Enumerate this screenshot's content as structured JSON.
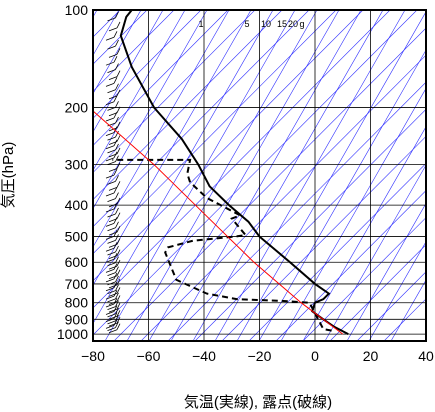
{
  "chart_data": {
    "type": "line",
    "title": "",
    "xlabel": "気温(実線), 露点(破線)",
    "ylabel": "気圧(hPa)",
    "xlim": [
      -80,
      40
    ],
    "ylim": [
      1050,
      100
    ],
    "y_scale": "log",
    "x_ticks": [
      "−80",
      "−60",
      "−40",
      "−20",
      "0",
      "20",
      "40"
    ],
    "y_ticks": [
      "100",
      "200",
      "300",
      "400",
      "500",
      "600",
      "700",
      "800",
      "900",
      "1000"
    ],
    "mixing_ratio_labels": [
      "1",
      "5",
      "10",
      "15",
      "20",
      "g"
    ],
    "grid": true,
    "series": [
      {
        "style": "solid",
        "color": "#000000",
        "points": [
          [
            12,
            1000
          ],
          [
            7,
            950
          ],
          [
            3,
            900
          ],
          [
            -1,
            850
          ],
          [
            0,
            800
          ],
          [
            3,
            780
          ],
          [
            5,
            750
          ],
          [
            0,
            700
          ],
          [
            -9,
            600
          ],
          [
            -20,
            500
          ],
          [
            -24,
            450
          ],
          [
            -31,
            400
          ],
          [
            -38,
            350
          ],
          [
            -42,
            300
          ],
          [
            -48,
            250
          ],
          [
            -58,
            200
          ],
          [
            -66,
            150
          ],
          [
            -70,
            120
          ],
          [
            -68,
            105
          ],
          [
            -66,
            100
          ]
        ]
      },
      {
        "style": "dashed",
        "color": "#000000",
        "points": [
          [
            6,
            975
          ],
          [
            3,
            965
          ],
          [
            -2,
            800
          ],
          [
            -12,
            790
          ],
          [
            -28,
            780
          ],
          [
            -39,
            750
          ],
          [
            -50,
            680
          ],
          [
            -54,
            560
          ],
          [
            -53,
            540
          ],
          [
            -44,
            515
          ],
          [
            -29,
            500
          ],
          [
            -25,
            495
          ],
          [
            -30,
            440
          ],
          [
            -27,
            430
          ],
          [
            -39,
            380
          ],
          [
            -45,
            340
          ],
          [
            -46,
            320
          ],
          [
            -45,
            290
          ],
          [
            -73,
            290
          ]
        ]
      },
      {
        "style": "solid",
        "color": "#ff0000",
        "points": [
          [
            10,
            1000
          ],
          [
            -5,
            800
          ],
          [
            -22,
            600
          ],
          [
            -37,
            450
          ],
          [
            -58,
            300
          ],
          [
            -80,
            205
          ]
        ]
      }
    ]
  }
}
